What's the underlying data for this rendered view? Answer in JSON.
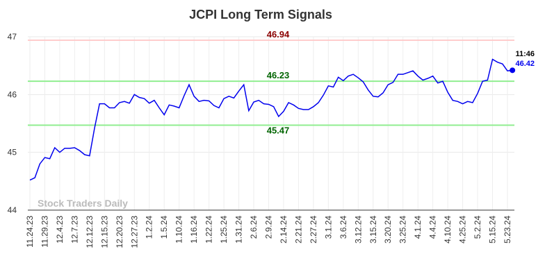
{
  "chart_data": {
    "type": "line",
    "title": "JCPI Long Term Signals",
    "watermark": "Stock Traders Daily",
    "annotation": "11:46",
    "categories": [
      "11.24.23",
      null,
      null,
      "11.29.23",
      null,
      null,
      "12.4.23",
      null,
      null,
      "12.7.23",
      null,
      null,
      "12.12.23",
      null,
      null,
      "12.15.23",
      null,
      null,
      "12.20.23",
      null,
      null,
      "12.27.23",
      null,
      null,
      "1.2.24",
      null,
      null,
      "1.5.24",
      null,
      null,
      "1.10.24",
      null,
      null,
      "1.16.24",
      null,
      null,
      "1.22.24",
      null,
      null,
      "1.25.24",
      null,
      null,
      "1.31.24",
      null,
      null,
      "2.6.24",
      null,
      null,
      "2.9.24",
      null,
      null,
      "2.14.24",
      null,
      null,
      "2.21.24",
      null,
      null,
      "2.27.24",
      null,
      null,
      "3.1.24",
      null,
      null,
      "3.6.24",
      null,
      null,
      "3.12.24",
      null,
      null,
      "3.15.24",
      null,
      null,
      "3.20.24",
      null,
      null,
      "3.25.24",
      null,
      null,
      "4.1.24",
      null,
      null,
      "4.4.24",
      null,
      null,
      "4.10.24",
      null,
      null,
      "4.25.24",
      null,
      null,
      "5.2.24",
      null,
      null,
      "5.15.24",
      null,
      null,
      "5.23.24",
      null
    ],
    "values": [
      44.52,
      44.56,
      44.8,
      44.91,
      44.89,
      45.08,
      45.0,
      45.07,
      45.07,
      45.08,
      45.03,
      44.96,
      44.94,
      45.42,
      45.84,
      45.84,
      45.77,
      45.77,
      45.86,
      45.88,
      45.85,
      46.0,
      45.95,
      45.93,
      45.85,
      45.9,
      45.77,
      45.65,
      45.82,
      45.8,
      45.77,
      45.98,
      46.17,
      45.97,
      45.88,
      45.9,
      45.89,
      45.81,
      45.77,
      45.93,
      45.97,
      45.94,
      46.06,
      46.17,
      45.72,
      45.87,
      45.9,
      45.84,
      45.83,
      45.79,
      45.62,
      45.71,
      45.86,
      45.82,
      45.76,
      45.74,
      45.74,
      45.79,
      45.86,
      45.99,
      46.15,
      46.13,
      46.3,
      46.24,
      46.32,
      46.35,
      46.29,
      46.22,
      46.08,
      45.97,
      45.96,
      46.03,
      46.17,
      46.21,
      46.35,
      46.35,
      46.38,
      46.41,
      46.32,
      46.25,
      46.28,
      46.32,
      46.2,
      46.23,
      46.04,
      45.9,
      45.88,
      45.84,
      45.88,
      45.86,
      46.02,
      46.23,
      46.25,
      46.61,
      46.56,
      46.53,
      46.41,
      46.42
    ],
    "color": "#0000ee",
    "hlines": [
      {
        "value": 46.94,
        "color": "#ffcccc",
        "label_color": "#8b0000",
        "label_pos": "above"
      },
      {
        "value": 46.23,
        "color": "#90ee90",
        "label_color": "#006400",
        "label_pos": "above"
      },
      {
        "value": 45.47,
        "color": "#90ee90",
        "label_color": "#006400",
        "label_pos": "below"
      }
    ],
    "ylim": [
      44,
      47
    ],
    "yticks": [
      44,
      45,
      46,
      47
    ],
    "grid": true
  }
}
